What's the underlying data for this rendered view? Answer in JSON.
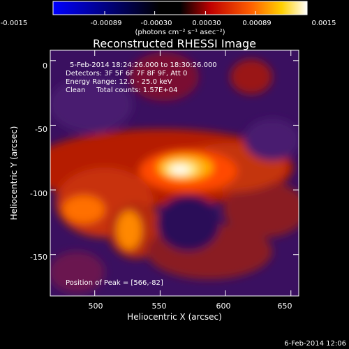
{
  "chart_data": {
    "type": "heatmap",
    "title": "Reconstructed RHESSI Image",
    "xlabel": "Heliocentric X (arcsec)",
    "ylabel": "Heliocentric Y (arcsec)",
    "xlim": [
      466,
      656
    ],
    "ylim": [
      -182,
      8
    ],
    "x_ticks": [
      500,
      550,
      600,
      650
    ],
    "y_ticks": [
      0,
      -50,
      -100,
      -150
    ],
    "colorbar": {
      "colormap": "blue-black-red-yellow-white",
      "range": [
        -0.0015,
        0.0015
      ],
      "tick_values": [
        -0.0015,
        -0.00089,
        -0.0003,
        0.0003,
        0.00089,
        0.0015
      ],
      "tick_labels": [
        "-0.0015",
        "-0.00089",
        "-0.00030",
        "0.00030",
        "0.00089",
        "0.0015"
      ],
      "label": "(photons cm⁻² s⁻¹ asec⁻²)"
    },
    "annotations": [
      "5-Feb-2014 18:24:26.000 to 18:30:26.000",
      "Detectors: 3F 5F 6F 7F 8F 9F, Att 0",
      "Energy Range: 12.0 - 25.0 keV",
      "Clean     Total counts: 1.57E+04"
    ],
    "peak_label": "Position of Peak = [566,-82]",
    "peak_position": [
      566,
      -82
    ]
  },
  "footer_timestamp": "6-Feb-2014 12:06"
}
